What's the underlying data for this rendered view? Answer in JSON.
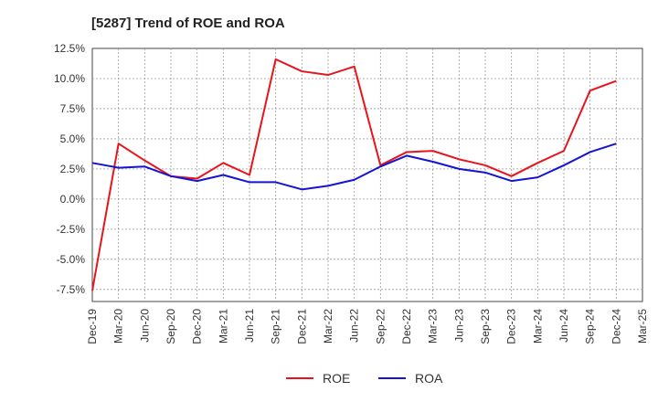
{
  "chart_data": {
    "type": "line",
    "title": "[5287]  Trend of ROE and ROA",
    "xlabel": "",
    "ylabel": "",
    "categories": [
      "Dec-19",
      "Mar-20",
      "Jun-20",
      "Sep-20",
      "Dec-20",
      "Mar-21",
      "Jun-21",
      "Sep-21",
      "Dec-21",
      "Mar-22",
      "Jun-22",
      "Sep-22",
      "Dec-22",
      "Mar-23",
      "Jun-23",
      "Sep-23",
      "Dec-23",
      "Mar-24",
      "Jun-24",
      "Sep-24",
      "Dec-24",
      "Mar-25"
    ],
    "ylim": [
      -8.5,
      12.5
    ],
    "yticks": [
      "12.5%",
      "10.0%",
      "7.5%",
      "5.0%",
      "2.5%",
      "0.0%",
      "-2.5%",
      "-5.0%",
      "-7.5%"
    ],
    "grid": true,
    "legend": "bottom-center",
    "series": [
      {
        "name": "ROE",
        "color": "#e8141c",
        "values": [
          -7.6,
          4.6,
          3.2,
          1.9,
          1.7,
          3.0,
          2.0,
          11.6,
          10.6,
          10.3,
          11.0,
          2.8,
          3.9,
          4.0,
          3.3,
          2.8,
          1.9,
          3.0,
          4.0,
          9.0,
          9.8,
          null
        ]
      },
      {
        "name": "ROA",
        "color": "#1414d2",
        "values": [
          3.0,
          2.6,
          2.7,
          1.9,
          1.5,
          2.0,
          1.4,
          1.4,
          0.8,
          1.1,
          1.6,
          2.7,
          3.6,
          3.1,
          2.5,
          2.2,
          1.5,
          1.8,
          2.8,
          3.9,
          4.6,
          null
        ]
      }
    ]
  }
}
